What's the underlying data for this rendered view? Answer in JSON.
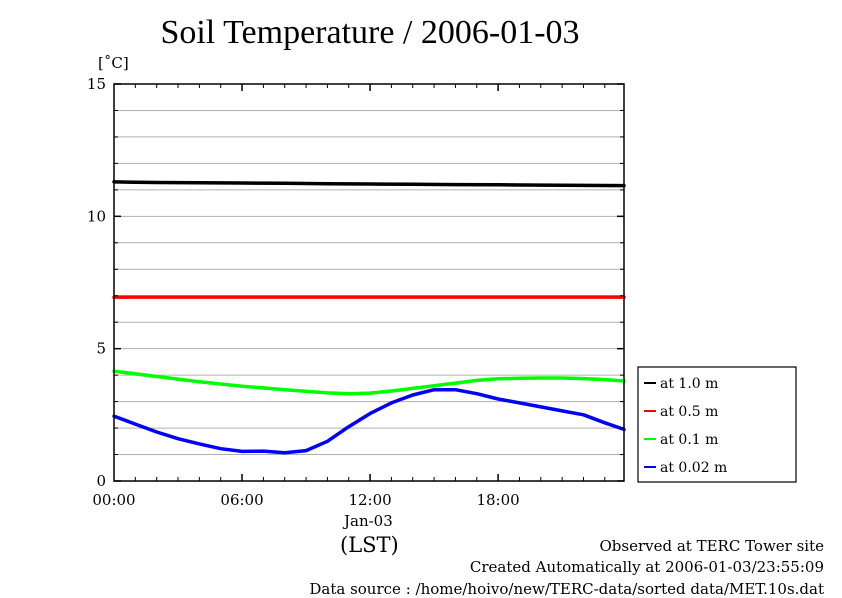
{
  "chart_data": {
    "type": "line",
    "title": "Soil Temperature / 2006-01-03",
    "ylabel": "[˚C]",
    "xlabel_date": "Jan-03",
    "xlabel_tz": "(LST)",
    "ylim": [
      0,
      15
    ],
    "xlim_hours": [
      0,
      23.9
    ],
    "y_ticks": [
      0,
      5,
      10,
      15
    ],
    "y_tick_labels": [
      "0",
      "5",
      "10",
      "15"
    ],
    "x_ticks": [
      0,
      6,
      12,
      18
    ],
    "x_tick_labels": [
      "00:00",
      "06:00",
      "12:00",
      "18:00"
    ],
    "grid": true,
    "legend_position": "right",
    "series": [
      {
        "name": "at 1.0 m",
        "color": "#000000",
        "x": [
          0,
          2,
          4,
          6,
          8,
          10,
          12,
          14,
          16,
          18,
          20,
          22,
          23.9
        ],
        "y": [
          11.3,
          11.28,
          11.27,
          11.26,
          11.25,
          11.23,
          11.22,
          11.21,
          11.2,
          11.19,
          11.18,
          11.17,
          11.16
        ]
      },
      {
        "name": "at 0.5 m",
        "color": "#ff0000",
        "x": [
          0,
          4,
          8,
          12,
          16,
          20,
          23.9
        ],
        "y": [
          6.95,
          6.95,
          6.95,
          6.95,
          6.95,
          6.95,
          6.95
        ]
      },
      {
        "name": "at 0.1 m",
        "color": "#00ff00",
        "x": [
          0,
          2,
          4,
          6,
          8,
          10,
          11,
          12,
          13,
          14,
          15,
          16,
          17,
          18,
          19,
          20,
          21,
          22,
          23,
          23.9
        ],
        "y": [
          4.15,
          3.95,
          3.75,
          3.58,
          3.45,
          3.33,
          3.3,
          3.32,
          3.4,
          3.5,
          3.6,
          3.7,
          3.8,
          3.86,
          3.88,
          3.89,
          3.89,
          3.87,
          3.83,
          3.78
        ]
      },
      {
        "name": "at 0.02 m",
        "color": "#0000ff",
        "x": [
          0,
          1,
          2,
          3,
          4,
          5,
          6,
          7,
          8,
          9,
          10,
          11,
          12,
          13,
          14,
          15,
          16,
          17,
          18,
          19,
          20,
          21,
          22,
          23,
          23.9
        ],
        "y": [
          2.45,
          2.15,
          1.85,
          1.6,
          1.4,
          1.22,
          1.12,
          1.13,
          1.07,
          1.15,
          1.5,
          2.05,
          2.55,
          2.95,
          3.25,
          3.45,
          3.45,
          3.3,
          3.1,
          2.95,
          2.8,
          2.65,
          2.5,
          2.2,
          1.95
        ]
      }
    ]
  },
  "footer": {
    "line1": "Observed at TERC Tower site",
    "line2": "Created Automatically at 2006-01-03/23:55:09",
    "line3": "Data source : /home/hoivo/new/TERC-data/sorted  data/MET.10s.dat"
  }
}
